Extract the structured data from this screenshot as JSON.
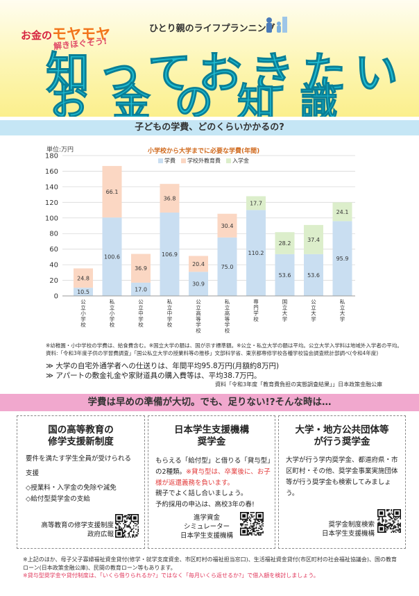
{
  "header": {
    "tag_prefix": "お金の",
    "tag_highlight": "モヤモヤ",
    "tag_line2": "解きほぐそう!",
    "brand": "ひとり親のライフプランニング",
    "title_line1": "知っておきたい",
    "title_line2": "お金の知識"
  },
  "question": "子どもの学費、どのくらいかかるの?",
  "chart_data": {
    "type": "bar",
    "stacked": true,
    "title": "小学校から大学までに必要な学費(年間)",
    "unit_label": "単位:万円",
    "ylim": [
      0,
      180
    ],
    "yticks": [
      0,
      20,
      40,
      60,
      80,
      100,
      120,
      140,
      160,
      180
    ],
    "grid": true,
    "legend_position": "top",
    "categories": [
      "公立小学校",
      "私立小学校",
      "公立中学校",
      "私立中学校",
      "公立高等学校",
      "私立高等学校",
      "専門学校",
      "国立大学",
      "公立大学",
      "私立大学"
    ],
    "series": [
      {
        "name": "学費",
        "values": [
          null,
          null,
          null,
          null,
          null,
          null,
          null,
          null,
          null,
          null
        ]
      },
      {
        "name": "学校外教育費",
        "values": [
          null,
          null,
          null,
          null,
          null,
          null,
          null,
          null,
          null,
          null
        ]
      },
      {
        "name": "入学金",
        "values": [
          null,
          null,
          null,
          null,
          null,
          null,
          null,
          null,
          null,
          null
        ]
      }
    ],
    "segments": {
      "bottom": [
        10.5,
        100.6,
        17.0,
        106.9,
        30.9,
        75.0,
        110.2,
        53.6,
        53.6,
        95.9
      ],
      "top": [
        24.8,
        66.1,
        36.9,
        36.8,
        20.4,
        30.4,
        17.7,
        28.2,
        37.4,
        24.1
      ],
      "bottom_labels": [
        "10.5",
        "100.6",
        "17.0",
        "106.9",
        "30.9",
        "75.0",
        "110.2",
        "53.6",
        "53.6",
        "95.9"
      ],
      "top_labels": [
        "24.8",
        "66.1",
        "36.9",
        "36.8",
        "20.4",
        "30.4",
        "17.7",
        "28.2",
        "37.4",
        "24.1"
      ],
      "top_kind": [
        "outside",
        "outside",
        "outside",
        "outside",
        "outside",
        "outside",
        "entrance",
        "entrance",
        "entrance",
        "entrance"
      ]
    },
    "colors": {
      "tuition": "#c9def1",
      "outside": "#fbd7c3",
      "entrance": "#dceecb"
    }
  },
  "notes": {
    "chart_note": "※幼稚園・小中学校の学費は、給食費含む。※国立大学の額は、国が示す標準額。※公立・私立大学の額は平均。公立大学入学料は地域外入学者の平均。資料:「令和3年度子供の学習費調査」「国公私立大学の授業料等の推移」文部科学省、東京都専修学校各種学校協会調査統計部調べ(令和4年度)",
    "bullet1": "≫ 大学の自宅外通学者への仕送りは、年間平均95.8万円(月額約8万円)",
    "bullet2": "≫ アパートの敷金礼金や家財道具の購入費等は、平均38.7万円。",
    "source2": "資料「令和3年度「教育費負担の実態調査結果」」日本政策金融公庫"
  },
  "prep_banner": "学費は早めの準備が大切。でも、足りない!?そんな時は…",
  "boxes": [
    {
      "title": "国の高等教育の\n修学支援新制度",
      "text1": "要件を満たす学生全員が受けられる",
      "text2": "支援",
      "text3": "◇授業料・入学金の免除や減免",
      "text4": "◇給付型奨学金の支給",
      "qr_label": "高等教育の修学支援制度\n政府広報"
    },
    {
      "title": "日本学生支援機構\n奨学金",
      "text1": "もらえる「給付型」と借りる「貸与型」",
      "text2": "の2種類。",
      "text2_red": "※貸与型は、卒業後に、お子様が返還義務を負います。",
      "text3": "親子でよく話し合いましょう。",
      "text4": "予約採用の申込は、高校3年の春!",
      "qr_label": "進学資金\nシミュレーター\n日本学生支援機構"
    },
    {
      "title": "大学・地方公共団体等\nが行う奨学金",
      "text1": "大学が行う学内奨学金、都道府県・市区町村・その他、奨学金事業実施団体等が行う奨学金も検索してみましょう。",
      "qr_label": "奨学金制度検索\n日本学生支援機構"
    }
  ],
  "footer": {
    "line1": "※上記のほか、母子父子寡婦福祉資金貸付(修学・就学支度資金、市区町村の福祉担当窓口)、生活福祉資金貸付(市区町村の社会福祉協議会)、国の教育ローン(日本政策金融公庫)、民間の教育ローン等もあります。",
    "line2": "※貸与型奨学金や貸付制度は、「いくら借りられるか?」ではなく「毎月いくら返せるか?」で借入額を検討しましょう。"
  }
}
